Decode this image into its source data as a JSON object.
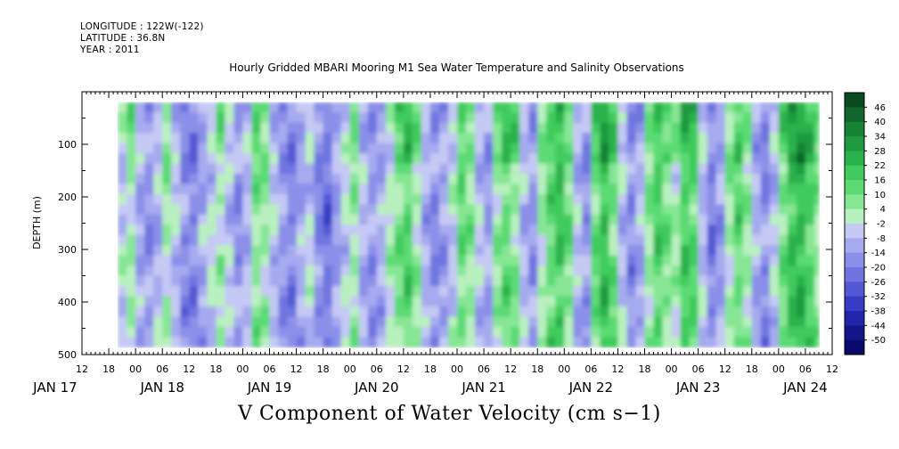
{
  "header": {
    "longitude": "LONGITUDE : 122W(-122)",
    "latitude": "LATITUDE : 36.8N",
    "year": "YEAR : 2011",
    "title": "Hourly Gridded MBARI Mooring M1 Sea Water Temperature and Salinity Observations"
  },
  "chart_data": {
    "type": "heatmap",
    "title": "Hourly Gridded MBARI Mooring M1 Sea Water Temperature and Salinity Observations",
    "variable_label": "V Component of Water Velocity (cm s−1)",
    "ylabel": "DEPTH (m)",
    "y_axis_inverted": true,
    "ylim": [
      500,
      0
    ],
    "y_ticks": [
      100,
      200,
      300,
      400,
      500
    ],
    "y_tick_labels": [
      "100",
      "200",
      "300",
      "400",
      "500"
    ],
    "x_start_hour": 12,
    "x_end_hour": 180,
    "x_tick_labels": [
      "12",
      "18",
      "00",
      "06",
      "12",
      "18",
      "00",
      "06",
      "12",
      "18",
      "00",
      "06",
      "12",
      "18",
      "00",
      "06",
      "12",
      "18",
      "00",
      "06",
      "12",
      "18",
      "00",
      "06",
      "12",
      "18",
      "00",
      "06",
      "12"
    ],
    "day_labels": [
      {
        "text": "JAN 17",
        "hour": 0
      },
      {
        "text": "JAN 18",
        "hour": 24
      },
      {
        "text": "JAN 19",
        "hour": 48
      },
      {
        "text": "JAN 20",
        "hour": 72
      },
      {
        "text": "JAN 21",
        "hour": 96
      },
      {
        "text": "JAN 22",
        "hour": 120
      },
      {
        "text": "JAN 23",
        "hour": 144
      },
      {
        "text": "JAN 24",
        "hour": 168
      }
    ],
    "data_extent": {
      "hour_start": 20,
      "hour_end": 177,
      "depth_top": 20,
      "depth_bottom": 486
    },
    "colorbar": {
      "labels": [
        "46",
        "40",
        "34",
        "28",
        "22",
        "16",
        "10",
        "4",
        "-2",
        "-8",
        "-14",
        "-20",
        "-26",
        "-32",
        "-38",
        "-44",
        "-50"
      ],
      "colors": [
        "#0a4a1f",
        "#10662c",
        "#168236",
        "#1f9a40",
        "#2bb24c",
        "#3fcb5d",
        "#5bda73",
        "#86e694",
        "#b9f0bf",
        "#c5c9f4",
        "#a6aaef",
        "#8b8fe8",
        "#6f74e0",
        "#5458d4",
        "#383cc4",
        "#2326a8",
        "#121688",
        "#08096a"
      ],
      "legend_values": [
        46,
        -50
      ]
    },
    "bands": [
      {
        "hour": 20,
        "v": -4
      },
      {
        "hour": 22,
        "v": 2
      },
      {
        "hour": 24,
        "v": -10
      },
      {
        "hour": 26,
        "v": -14
      },
      {
        "hour": 28,
        "v": -8
      },
      {
        "hour": 30,
        "v": 2
      },
      {
        "hour": 32,
        "v": -6
      },
      {
        "hour": 34,
        "v": -16
      },
      {
        "hour": 36,
        "v": -18
      },
      {
        "hour": 38,
        "v": -10
      },
      {
        "hour": 40,
        "v": -4
      },
      {
        "hour": 42,
        "v": 2
      },
      {
        "hour": 44,
        "v": -6
      },
      {
        "hour": 46,
        "v": -14
      },
      {
        "hour": 48,
        "v": -8
      },
      {
        "hour": 50,
        "v": 6
      },
      {
        "hour": 52,
        "v": 4
      },
      {
        "hour": 54,
        "v": -6
      },
      {
        "hour": 56,
        "v": -14
      },
      {
        "hour": 58,
        "v": -18
      },
      {
        "hour": 60,
        "v": -10
      },
      {
        "hour": 62,
        "v": -4
      },
      {
        "hour": 64,
        "v": -16
      },
      {
        "hour": 66,
        "v": -22
      },
      {
        "hour": 68,
        "v": -12
      },
      {
        "hour": 70,
        "v": -4
      },
      {
        "hour": 72,
        "v": 4
      },
      {
        "hour": 74,
        "v": -8
      },
      {
        "hour": 76,
        "v": -14
      },
      {
        "hour": 78,
        "v": -10
      },
      {
        "hour": 80,
        "v": 0
      },
      {
        "hour": 82,
        "v": 8
      },
      {
        "hour": 84,
        "v": 14
      },
      {
        "hour": 86,
        "v": 2
      },
      {
        "hour": 88,
        "v": -10
      },
      {
        "hour": 90,
        "v": -16
      },
      {
        "hour": 92,
        "v": -12
      },
      {
        "hour": 94,
        "v": -4
      },
      {
        "hour": 96,
        "v": 10
      },
      {
        "hour": 98,
        "v": 6
      },
      {
        "hour": 100,
        "v": -6
      },
      {
        "hour": 102,
        "v": -12
      },
      {
        "hour": 104,
        "v": 4
      },
      {
        "hour": 106,
        "v": 12
      },
      {
        "hour": 108,
        "v": 6
      },
      {
        "hour": 110,
        "v": -8
      },
      {
        "hour": 112,
        "v": -14
      },
      {
        "hour": 114,
        "v": 2
      },
      {
        "hour": 116,
        "v": 12
      },
      {
        "hour": 118,
        "v": 18
      },
      {
        "hour": 120,
        "v": 8
      },
      {
        "hour": 122,
        "v": -8
      },
      {
        "hour": 124,
        "v": -14
      },
      {
        "hour": 126,
        "v": 10
      },
      {
        "hour": 128,
        "v": 20
      },
      {
        "hour": 130,
        "v": 10
      },
      {
        "hour": 132,
        "v": -6
      },
      {
        "hour": 134,
        "v": -16
      },
      {
        "hour": 136,
        "v": -10
      },
      {
        "hour": 138,
        "v": 4
      },
      {
        "hour": 140,
        "v": 14
      },
      {
        "hour": 142,
        "v": 8
      },
      {
        "hour": 144,
        "v": 2
      },
      {
        "hour": 146,
        "v": 16
      },
      {
        "hour": 148,
        "v": 12
      },
      {
        "hour": 150,
        "v": -6
      },
      {
        "hour": 152,
        "v": -18
      },
      {
        "hour": 154,
        "v": -12
      },
      {
        "hour": 156,
        "v": 2
      },
      {
        "hour": 158,
        "v": 12
      },
      {
        "hour": 160,
        "v": 4
      },
      {
        "hour": 162,
        "v": -10
      },
      {
        "hour": 164,
        "v": -16
      },
      {
        "hour": 166,
        "v": -6
      },
      {
        "hour": 168,
        "v": 8
      },
      {
        "hour": 170,
        "v": 18
      },
      {
        "hour": 172,
        "v": 22
      },
      {
        "hour": 174,
        "v": 14
      },
      {
        "hour": 176,
        "v": 6
      }
    ]
  }
}
